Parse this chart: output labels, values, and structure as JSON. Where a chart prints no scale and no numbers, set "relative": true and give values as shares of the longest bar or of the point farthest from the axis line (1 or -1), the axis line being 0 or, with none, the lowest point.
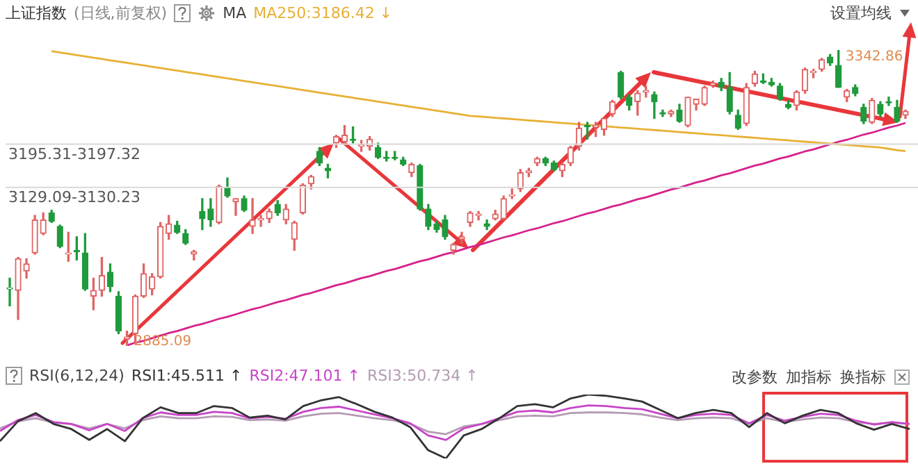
{
  "chart_data": [
    {
      "type": "candlestick",
      "title": "上证指数",
      "subtitle": "(日线,前复权)",
      "tick_labels": false,
      "legend": "top left",
      "marker": "none",
      "colors": [
        "#1f9a3c",
        "#e06464",
        "#e06464",
        "#e06464",
        "#e06464",
        "#1f9a3c",
        "#1f9a3c",
        "#e06464",
        "#1f9a3c",
        "#1f9a3c",
        "#e06464",
        "#e06464",
        "#1f9a3c",
        "#1f9a3c",
        "#e06464",
        "#e06464",
        "#e06464",
        "#e06464",
        "#e06464",
        "#e06464",
        "#1f9a3c",
        "#1f9a3c",
        "#e06464",
        "#1f9a3c",
        "#1f9a3c",
        "#e06464",
        "#1f9a3c",
        "#e06464",
        "#1f9a3c",
        "#e06464",
        "#e06464",
        "#e06464",
        "#1f9a3c",
        "#e06464",
        "#e06464",
        "#e06464",
        "#e06464",
        "#1f9a3c",
        "#1f9a3c",
        "#e06464",
        "#e06464",
        "#1f9a3c",
        "#e06464",
        "#e06464",
        "#1f9a3c",
        "#1f9a3c",
        "#1f9a3c",
        "#1f9a3c",
        "#e06464",
        "#1f9a3c",
        "#1f9a3c",
        "#1f9a3c",
        "#1f9a3c",
        "#e06464",
        "#e06464",
        "#e06464",
        "#e06464",
        "#1f9a3c",
        "#e06464",
        "#e06464",
        "#e06464",
        "#e06464",
        "#e06464",
        "#e06464",
        "#1f9a3c",
        "#1f9a3c",
        "#e06464",
        "#e06464",
        "#e06464",
        "#1f9a3c",
        "#e06464",
        "#e06464",
        "#e06464",
        "#1f9a3c",
        "#1f9a3c",
        "#e06464",
        "#e06464",
        "#1f9a3c",
        "#1f9a3c",
        "#e06464",
        "#1f9a3c",
        "#e06464",
        "#e06464",
        "#e06464",
        "#e06464",
        "#1f9a3c",
        "#1f9a3c",
        "#1f9a3c",
        "#e06464",
        "#e06464",
        "#1f9a3c",
        "#1f9a3c",
        "#1f9a3c",
        "#1f9a3c",
        "#e06464",
        "#e06464",
        "#e06464",
        "#e06464",
        "#1f9a3c",
        "#1f9a3c",
        "#e06464",
        "#1f9a3c",
        "#1f9a3c",
        "#e06464",
        "#1f9a3c",
        "#1f9a3c",
        "#1f9a3c",
        "#e06464"
      ],
      "categories": [
        null,
        null,
        null,
        null,
        null,
        null,
        null,
        null,
        null,
        null,
        null,
        null,
        null,
        null,
        null,
        null,
        null,
        null,
        null,
        null,
        null,
        null,
        null,
        null,
        null,
        null,
        null,
        null,
        null,
        null,
        null,
        null,
        null,
        null,
        null,
        null,
        null,
        null,
        null,
        null,
        null,
        null,
        null,
        null,
        null,
        null,
        null,
        null,
        null,
        null,
        null,
        null,
        null,
        null,
        null,
        null,
        null,
        null,
        null,
        null,
        null,
        null,
        null,
        null,
        null,
        null,
        null,
        null,
        null,
        null,
        null,
        null,
        null,
        null,
        null,
        null,
        null,
        null,
        null,
        null,
        null,
        null,
        null,
        null,
        null,
        null,
        null,
        null,
        null,
        null,
        null,
        null,
        null,
        null,
        null,
        null,
        null,
        null,
        null,
        null,
        null,
        null,
        null,
        null,
        null,
        null,
        null,
        null
      ],
      "ohlc": [
        [
          2973,
          2990,
          2947,
          2975
        ],
        [
          2971,
          3022,
          2926,
          3020
        ],
        [
          3001,
          3020,
          2990,
          3012
        ],
        [
          3029,
          3087,
          3027,
          3080
        ],
        [
          3059,
          3091,
          3057,
          3080
        ],
        [
          3091,
          3095,
          3076,
          3078
        ],
        [
          3070,
          3072,
          3037,
          3039
        ],
        [
          3027,
          3061,
          3016,
          3029
        ],
        [
          3033,
          3054,
          3018,
          3031
        ],
        [
          3029,
          3059,
          2971,
          2973
        ],
        [
          2962,
          2990,
          2941,
          2971
        ],
        [
          2971,
          3022,
          2962,
          2994
        ],
        [
          2999,
          3012,
          2969,
          2977
        ],
        [
          2962,
          2969,
          2904,
          2908
        ],
        [
          2896,
          2908,
          2885.09,
          2899
        ],
        [
          2904,
          2964,
          2889,
          2962
        ],
        [
          2962,
          3012,
          2960,
          2997
        ],
        [
          2973,
          2997,
          2964,
          2992
        ],
        [
          2992,
          3076,
          2990,
          3070
        ],
        [
          3059,
          3087,
          3050,
          3074
        ],
        [
          3072,
          3078,
          3059,
          3061
        ],
        [
          3059,
          3065,
          3042,
          3044
        ],
        [
          3027,
          3033,
          3018,
          3031
        ],
        [
          3093,
          3113,
          3065,
          3082
        ],
        [
          3097,
          3113,
          3070,
          3080
        ],
        [
          3076,
          3134,
          3074,
          3132
        ],
        [
          3130,
          3145,
          3115,
          3117
        ],
        [
          3108,
          3113,
          3087,
          3113
        ],
        [
          3113,
          3117,
          3093,
          3095
        ],
        [
          3070,
          3113,
          3059,
          3080
        ],
        [
          3080,
          3087,
          3070,
          3082
        ],
        [
          3082,
          3097,
          3076,
          3093
        ],
        [
          3104,
          3110,
          3087,
          3091
        ],
        [
          3080,
          3104,
          3074,
          3097
        ],
        [
          3050,
          3078,
          3033,
          3076
        ],
        [
          3091,
          3136,
          3089,
          3134
        ],
        [
          3136,
          3149,
          3128,
          3147
        ],
        [
          3186,
          3192,
          3164,
          3168
        ],
        [
          3160,
          3166,
          3145,
          3156
        ],
        [
          3199,
          3211,
          3192,
          3209
        ],
        [
          3201,
          3226,
          3199,
          3211
        ],
        [
          3205,
          3224,
          3199,
          3203
        ],
        [
          3194,
          3203,
          3186,
          3196
        ],
        [
          3194,
          3209,
          3188,
          3205
        ],
        [
          3192,
          3199,
          3175,
          3177
        ],
        [
          3177,
          3186,
          3171,
          3175
        ],
        [
          3177,
          3186,
          3173,
          3175
        ],
        [
          3173,
          3177,
          3164,
          3166
        ],
        [
          3153,
          3168,
          3147,
          3166
        ],
        [
          3164,
          3166,
          3095,
          3097
        ],
        [
          3097,
          3104,
          3065,
          3070
        ],
        [
          3074,
          3078,
          3061,
          3065
        ],
        [
          3080,
          3087,
          3050,
          3054
        ],
        [
          3033,
          3044,
          3027,
          3042
        ],
        [
          3050,
          3061,
          3044,
          3054
        ],
        [
          3076,
          3093,
          3070,
          3091
        ],
        [
          3087,
          3093,
          3080,
          3089
        ],
        [
          3074,
          3080,
          3065,
          3070
        ],
        [
          3082,
          3095,
          3080,
          3089
        ],
        [
          3082,
          3117,
          3080,
          3113
        ],
        [
          3117,
          3128,
          3113,
          3119
        ],
        [
          3128,
          3158,
          3124,
          3153
        ],
        [
          3153,
          3160,
          3147,
          3156
        ],
        [
          3168,
          3177,
          3164,
          3175
        ],
        [
          3175,
          3177,
          3164,
          3168
        ],
        [
          3168,
          3171,
          3156,
          3158
        ],
        [
          3156,
          3168,
          3147,
          3166
        ],
        [
          3168,
          3194,
          3164,
          3192
        ],
        [
          3194,
          3231,
          3188,
          3222
        ],
        [
          3226,
          3231,
          3205,
          3224
        ],
        [
          3224,
          3231,
          3209,
          3226
        ],
        [
          3220,
          3237,
          3211,
          3237
        ],
        [
          3244,
          3265,
          3240,
          3263
        ],
        [
          3308,
          3310,
          3267,
          3270
        ],
        [
          3270,
          3274,
          3250,
          3257
        ],
        [
          3263,
          3280,
          3242,
          3276
        ],
        [
          3278,
          3287,
          3270,
          3280
        ],
        [
          3274,
          3278,
          3237,
          3263
        ],
        [
          3246,
          3250,
          3240,
          3244
        ],
        [
          3244,
          3250,
          3240,
          3248
        ],
        [
          3250,
          3259,
          3231,
          3233
        ],
        [
          3226,
          3270,
          3224,
          3270
        ],
        [
          3259,
          3267,
          3250,
          3267
        ],
        [
          3259,
          3287,
          3257,
          3285
        ],
        [
          3289,
          3295,
          3285,
          3291
        ],
        [
          3293,
          3299,
          3280,
          3285
        ],
        [
          3285,
          3308,
          3244,
          3248
        ],
        [
          3242,
          3250,
          3220,
          3222
        ],
        [
          3229,
          3291,
          3226,
          3285
        ],
        [
          3291,
          3310,
          3287,
          3306
        ],
        [
          3295,
          3306,
          3291,
          3293
        ],
        [
          3293,
          3299,
          3287,
          3289
        ],
        [
          3287,
          3291,
          3265,
          3267
        ],
        [
          3259,
          3265,
          3252,
          3254
        ],
        [
          3257,
          3280,
          3250,
          3278
        ],
        [
          3280,
          3315,
          3276,
          3313
        ],
        [
          3308,
          3313,
          3300,
          3310
        ],
        [
          3313,
          3330,
          3310,
          3328
        ],
        [
          3332,
          3336,
          3319,
          3323
        ],
        [
          3319,
          3342.86,
          3285,
          3285
        ],
        [
          3270,
          3282,
          3263,
          3280
        ],
        [
          3285,
          3289,
          3272,
          3276
        ],
        [
          3254,
          3259,
          3229,
          3233
        ],
        [
          3231,
          3268,
          3229,
          3265
        ],
        [
          3259,
          3263,
          3240,
          3244
        ],
        [
          3263,
          3270,
          3257,
          3261
        ],
        [
          3254,
          3265,
          3231,
          3233
        ],
        [
          3242,
          3250,
          3237,
          3248
        ]
      ],
      "series": [
        {
          "name": "MA250:3186.42 ↓",
          "type": "line",
          "color": "#e8b034",
          "values": [
            null,
            null,
            null,
            null,
            null,
            3341,
            3339,
            3337,
            3335,
            3333,
            3331,
            3329,
            3327,
            3325,
            3323,
            3321,
            3319,
            3317,
            3315,
            3313,
            3311,
            3309,
            3307,
            3305,
            3303,
            3301,
            3299,
            3297,
            3295,
            3293,
            3291,
            3289,
            3287,
            3285,
            3283,
            3281,
            3279,
            3277,
            3275,
            3273,
            3271,
            3269,
            3267,
            3265,
            3263,
            3261,
            3259,
            3257,
            3255,
            3253,
            3251,
            3249,
            3247,
            3245,
            3243,
            3241,
            3240,
            3239,
            3238,
            3237,
            3236,
            3235,
            3234,
            3233,
            3232,
            3231,
            3230,
            3229,
            3228,
            3227,
            3226,
            3225,
            3224,
            3223,
            3222,
            3221,
            3220,
            3219,
            3218,
            3217,
            3216,
            3215,
            3214,
            3213,
            3212,
            3211,
            3210,
            3209,
            3208,
            3207,
            3206,
            3205,
            3204,
            3203,
            3202,
            3201,
            3200,
            3199,
            3198,
            3197,
            3196,
            3195,
            3194,
            3193,
            3192,
            3190,
            3188,
            3186.42
          ]
        },
        {
          "type": "line",
          "color": "#d6218c",
          "values": [
            null,
            null,
            null,
            null,
            null,
            null,
            null,
            null,
            null,
            null,
            null,
            null,
            null,
            null,
            2886,
            2890,
            2893,
            2897,
            2901,
            2905,
            2908,
            2912,
            2916,
            2919,
            2923,
            2927,
            2930,
            2934,
            2938,
            2942,
            2945,
            2949,
            2953,
            2956,
            2960,
            2964,
            2967,
            2971,
            2975,
            2979,
            2982,
            2986,
            2990,
            2993,
            2997,
            3001,
            3004,
            3008,
            3012,
            3016,
            3019,
            3023,
            3027,
            3030,
            3034,
            3038,
            3041,
            3045,
            3049,
            3053,
            3056,
            3060,
            3064,
            3067,
            3071,
            3075,
            3078,
            3082,
            3086,
            3090,
            3093,
            3097,
            3101,
            3104,
            3108,
            3112,
            3115,
            3119,
            3123,
            3127,
            3130,
            3134,
            3138,
            3141,
            3145,
            3149,
            3152,
            3156,
            3160,
            3164,
            3167,
            3171,
            3175,
            3178,
            3182,
            3186,
            3189,
            3193,
            3197,
            3201,
            3204,
            3208,
            3212,
            3215,
            3219,
            3223,
            3226,
            3230
          ]
        }
      ],
      "bands": [
        {
          "axis": "y",
          "from": 3195.31,
          "to": 3197.32,
          "label": "3195.31-3197.32",
          "color": "#d9d9d9"
        },
        {
          "axis": "y",
          "from": 3129.09,
          "to": 3130.23,
          "label": "3129.09-3130.23",
          "color": "#d9d9d9"
        }
      ],
      "annotations": [
        "MA",
        "设置均线",
        "3342.86",
        "2885.09"
      ]
    },
    {
      "type": "line",
      "title": "RSI(6,12,24)",
      "relative": true,
      "tick_labels": false,
      "legend": "top left",
      "marker": "none",
      "categories": [
        null,
        null,
        null,
        null,
        null,
        null,
        null,
        null,
        null,
        null,
        null,
        null,
        null,
        null,
        null,
        null,
        null,
        null,
        null,
        null,
        null,
        null,
        null,
        null,
        null,
        null,
        null,
        null,
        null,
        null,
        null,
        null,
        null,
        null,
        null,
        null,
        null,
        null,
        null,
        null,
        null,
        null,
        null,
        null,
        null,
        null,
        null,
        null,
        null,
        null,
        null,
        null
      ],
      "series": [
        {
          "name": "RSI1:45.511 ↑",
          "color": "#333333",
          "values": [
            0.27,
            0.58,
            0.71,
            0.54,
            0.46,
            0.29,
            0.46,
            0.27,
            0.63,
            0.8,
            0.71,
            0.71,
            0.82,
            0.79,
            0.64,
            0.67,
            0.61,
            0.82,
            0.91,
            0.96,
            0.85,
            0.73,
            0.64,
            0.49,
            0.13,
            0,
            0.36,
            0.46,
            0.63,
            0.82,
            0.85,
            0.8,
            0.94,
            1,
            0.98,
            0.94,
            0.89,
            0.76,
            0.63,
            0.71,
            0.76,
            0.71,
            0.49,
            0.71,
            0.55,
            0.67,
            0.76,
            0.71,
            0.55,
            0.45,
            0.54,
            0.46
          ]
        },
        {
          "name": "RSI2:47.101 ↑",
          "color": "#c845c8",
          "values": [
            0.43,
            0.6,
            0.68,
            0.57,
            0.54,
            0.44,
            0.54,
            0.43,
            0.63,
            0.72,
            0.68,
            0.68,
            0.73,
            0.71,
            0.63,
            0.65,
            0.62,
            0.73,
            0.79,
            0.81,
            0.75,
            0.69,
            0.63,
            0.55,
            0.36,
            0.29,
            0.47,
            0.54,
            0.63,
            0.73,
            0.75,
            0.72,
            0.79,
            0.83,
            0.82,
            0.79,
            0.77,
            0.7,
            0.63,
            0.68,
            0.7,
            0.68,
            0.55,
            0.68,
            0.59,
            0.65,
            0.7,
            0.68,
            0.59,
            0.53,
            0.57,
            0.54
          ]
        },
        {
          "name": "RSI3:50.734 ↑",
          "color": "#b49bb4",
          "values": [
            0.47,
            0.58,
            0.63,
            0.56,
            0.54,
            0.47,
            0.54,
            0.47,
            0.6,
            0.66,
            0.63,
            0.63,
            0.66,
            0.65,
            0.6,
            0.61,
            0.59,
            0.66,
            0.7,
            0.71,
            0.67,
            0.63,
            0.6,
            0.54,
            0.42,
            0.38,
            0.5,
            0.54,
            0.6,
            0.66,
            0.67,
            0.66,
            0.71,
            0.72,
            0.72,
            0.71,
            0.69,
            0.64,
            0.6,
            0.63,
            0.64,
            0.63,
            0.54,
            0.63,
            0.57,
            0.61,
            0.64,
            0.63,
            0.57,
            0.54,
            0.56,
            0.54
          ]
        }
      ],
      "annotations": [
        "改参数",
        "加指标",
        "换指标"
      ]
    }
  ]
}
